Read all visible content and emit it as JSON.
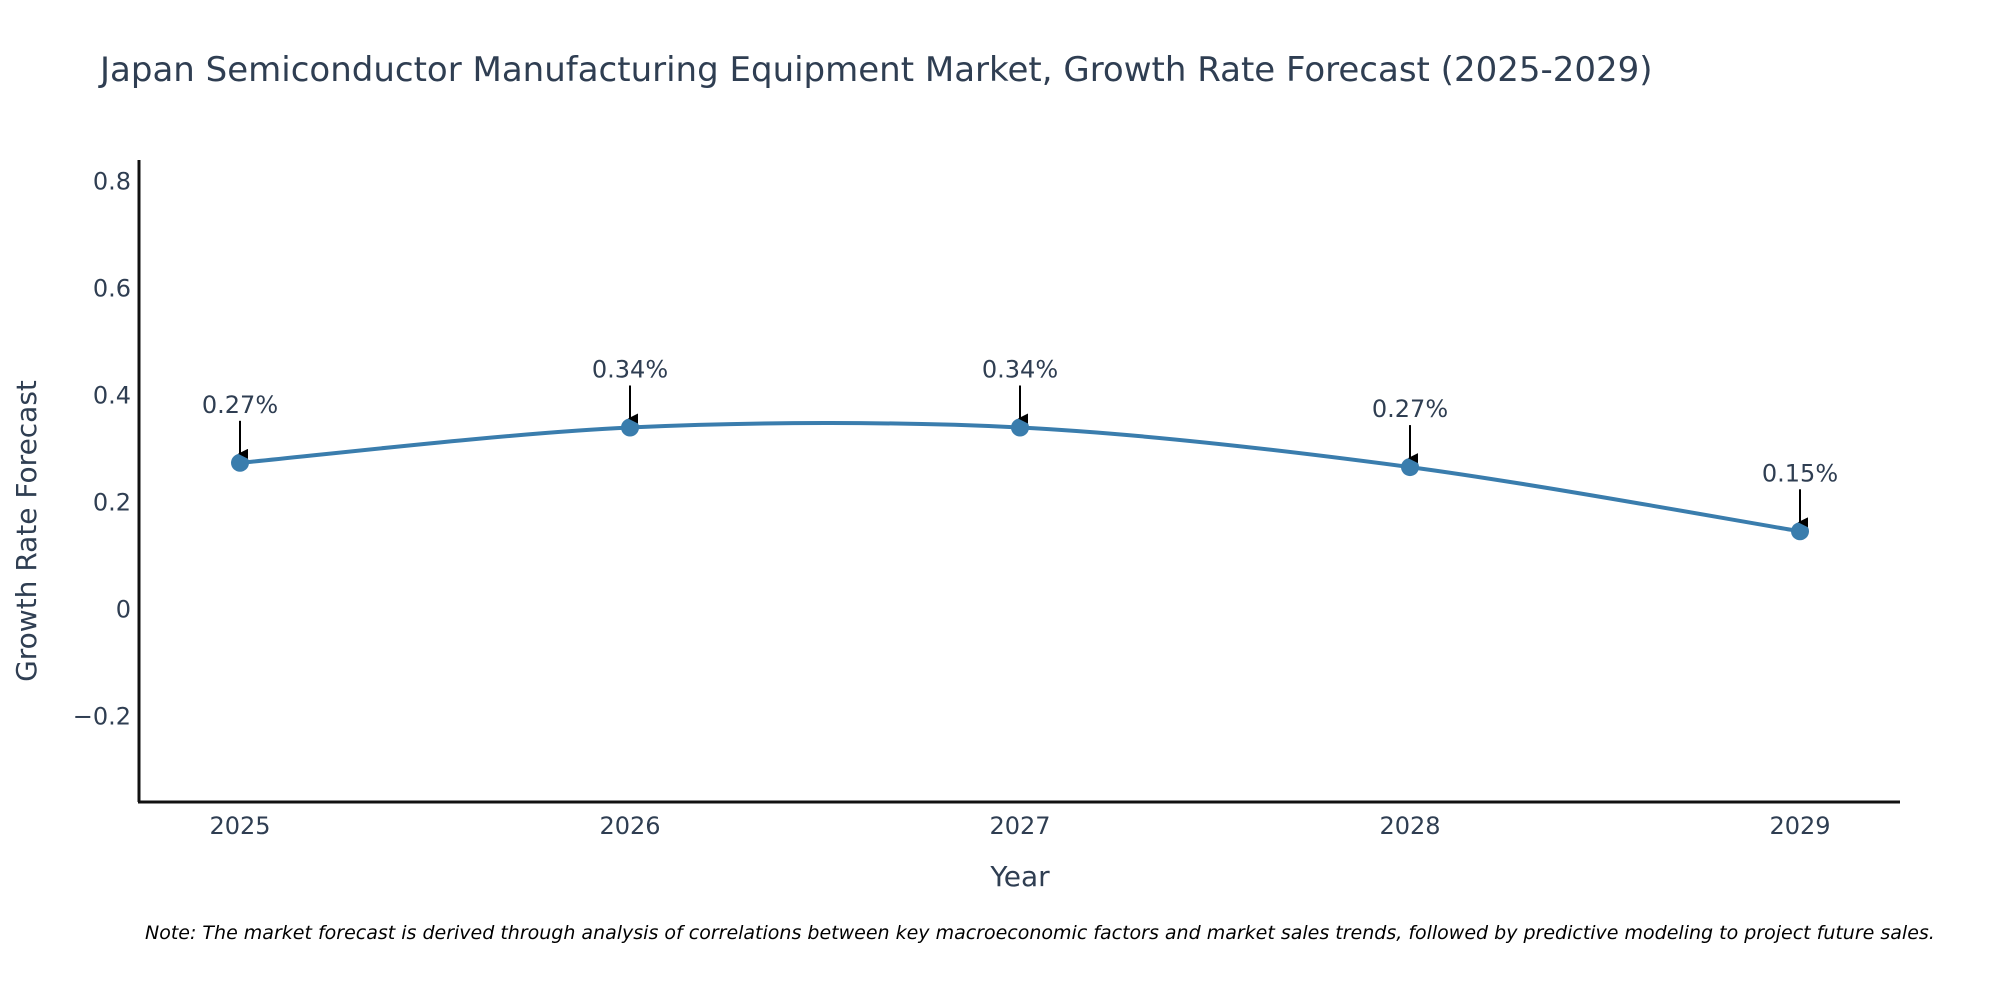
{
  "chart_data": {
    "type": "line",
    "title": "Japan Semiconductor Manufacturing Equipment Market, Growth Rate Forecast (2025-2029)",
    "xlabel": "Year",
    "ylabel": "Growth Rate Forecast",
    "categories": [
      "2025",
      "2026",
      "2027",
      "2028",
      "2029"
    ],
    "values": [
      0.274,
      0.34,
      0.34,
      0.266,
      0.146
    ],
    "data_labels": [
      "0.27%",
      "0.34%",
      "0.34%",
      "0.27%",
      "0.15%"
    ],
    "y_ticks": [
      -0.2,
      0,
      0.2,
      0.4,
      0.6,
      0.8
    ],
    "y_tick_labels": [
      "−0.2",
      "0",
      "0.2",
      "0.4",
      "0.6",
      "0.8"
    ],
    "ylim": [
      -0.36,
      0.84
    ],
    "line_color": "#3a7dad",
    "marker_color": "#3a7dad",
    "arrow_color": "#000000",
    "grid": false,
    "note": "Note: The market forecast is derived through analysis of correlations between key macroeconomic factors and market sales trends, followed by predictive modeling to project future sales."
  }
}
